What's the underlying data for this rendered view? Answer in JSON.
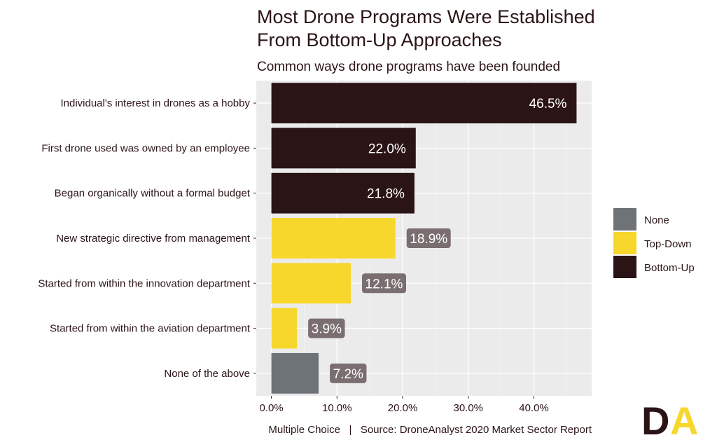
{
  "chart_data": {
    "type": "bar",
    "orientation": "horizontal",
    "title": "Most Drone Programs Were Established From Bottom-Up Approaches",
    "title_lines": [
      "Most Drone Programs Were Established",
      "From Bottom-Up Approaches"
    ],
    "subtitle": "Common ways drone programs have been founded",
    "caption": "Multiple Choice   |   Source: DroneAnalyst 2020 Market Sector Report",
    "categories": [
      "Individual's interest in drones as a hobby",
      "First drone used was owned by an employee",
      "Began organically without a formal budget",
      "New strategic directive from management",
      "Started from within the innovation department",
      "Started from within the aviation department",
      "None of the above"
    ],
    "values": [
      46.5,
      22.0,
      21.8,
      18.9,
      12.1,
      3.9,
      7.2
    ],
    "data_labels": [
      "46.5%",
      "22.0%",
      "21.8%",
      "18.9%",
      "12.1%",
      "3.9%",
      "7.2%"
    ],
    "groups": [
      "Bottom-Up",
      "Bottom-Up",
      "Bottom-Up",
      "Top-Down",
      "Top-Down",
      "Top-Down",
      "None"
    ],
    "x_ticks": [
      0,
      10,
      20,
      30,
      40
    ],
    "x_tick_labels": [
      "0.0%",
      "10.0%",
      "20.0%",
      "30.0%",
      "40.0%"
    ],
    "xlim": [
      -2.3,
      48.8
    ],
    "grid": true,
    "legend": {
      "placement": "right",
      "entries": [
        {
          "name": "None",
          "color": "#6e7378"
        },
        {
          "name": "Top-Down",
          "color": "#f7d72c"
        },
        {
          "name": "Bottom-Up",
          "color": "#2b1416"
        }
      ]
    },
    "colors": {
      "None": "#6e7378",
      "Top-Down": "#f7d72c",
      "Bottom-Up": "#2b1416",
      "label_box": "#7a6e70",
      "panel": "#ebebeb"
    }
  },
  "logo": {
    "text": "DA",
    "colors": [
      "#2b1416",
      "#f7d72c"
    ]
  }
}
